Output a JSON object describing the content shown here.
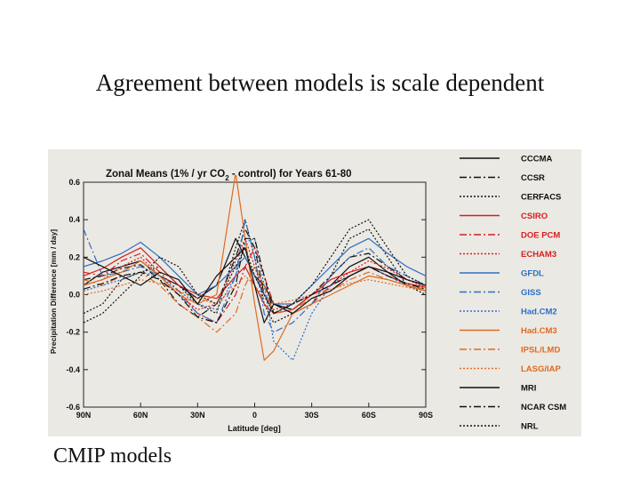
{
  "slide": {
    "title": "Agreement between models is scale dependent",
    "caption": "CMIP models"
  },
  "chart_data": {
    "type": "line",
    "title": "Zonal Means (1% / yr CO2 - control) for Years 61-80",
    "title_prefix": "Zonal Means (1% / yr CO",
    "title_sub": "2",
    "title_suffix": " - control) for Years 61-80",
    "xlabel": "Latitude  [deg]",
    "ylabel": "Precipitation Difference  [mm / day]",
    "xlim": [
      -90,
      90
    ],
    "ylim": [
      -0.6,
      0.6
    ],
    "xticks": [
      {
        "v": -90,
        "label": "90N"
      },
      {
        "v": -60,
        "label": "60N"
      },
      {
        "v": -30,
        "label": "30N"
      },
      {
        "v": 0,
        "label": "0"
      },
      {
        "v": 30,
        "label": "30S"
      },
      {
        "v": 60,
        "label": "60S"
      },
      {
        "v": 90,
        "label": "90S"
      }
    ],
    "yticks": [
      {
        "v": 0.6,
        "label": "0.6"
      },
      {
        "v": 0.4,
        "label": "0.4"
      },
      {
        "v": 0.2,
        "label": "0.2"
      },
      {
        "v": 0.0,
        "label": "0.0"
      },
      {
        "v": -0.2,
        "label": "-0.2"
      },
      {
        "v": -0.4,
        "label": "-0.4"
      },
      {
        "v": -0.6,
        "label": "-0.6"
      }
    ],
    "x": [
      -90,
      -80,
      -70,
      -60,
      -50,
      -40,
      -30,
      -20,
      -10,
      -5,
      0,
      5,
      10,
      20,
      30,
      40,
      50,
      60,
      70,
      80,
      90
    ],
    "series": [
      {
        "name": "CCCMA",
        "color": "#111111",
        "dash": "solid",
        "values": [
          0.05,
          0.12,
          0.15,
          0.18,
          0.1,
          0.05,
          -0.02,
          0.05,
          0.3,
          0.2,
          0.1,
          0.05,
          -0.05,
          -0.08,
          0.0,
          0.05,
          0.15,
          0.2,
          0.12,
          0.05,
          0.02
        ]
      },
      {
        "name": "CCSR",
        "color": "#111111",
        "dash": "8,3,2,3",
        "values": [
          0.08,
          0.1,
          0.14,
          0.16,
          0.08,
          -0.05,
          -0.12,
          -0.05,
          0.2,
          0.35,
          0.25,
          0.0,
          -0.1,
          -0.05,
          0.0,
          0.1,
          0.2,
          0.22,
          0.15,
          0.08,
          0.05
        ]
      },
      {
        "name": "CERFACS",
        "color": "#111111",
        "dash": "2,2",
        "values": [
          -0.1,
          -0.05,
          0.08,
          0.12,
          0.15,
          0.05,
          -0.05,
          -0.1,
          0.25,
          0.4,
          0.2,
          -0.05,
          -0.15,
          -0.1,
          -0.05,
          0.1,
          0.3,
          0.35,
          0.2,
          0.05,
          0.0
        ]
      },
      {
        "name": "CSIRO",
        "color": "#d81e1e",
        "dash": "solid",
        "values": [
          0.1,
          0.14,
          0.2,
          0.25,
          0.15,
          0.05,
          0.0,
          -0.02,
          0.1,
          0.15,
          0.05,
          -0.05,
          -0.1,
          -0.08,
          0.0,
          0.08,
          0.12,
          0.15,
          0.1,
          0.06,
          0.04
        ]
      },
      {
        "name": "DOE PCM",
        "color": "#d81e1e",
        "dash": "8,3,2,3",
        "values": [
          0.12,
          0.1,
          0.18,
          0.22,
          0.12,
          0.02,
          -0.1,
          -0.15,
          0.0,
          0.15,
          0.25,
          0.1,
          -0.05,
          -0.1,
          -0.05,
          0.05,
          0.1,
          0.15,
          0.12,
          0.08,
          0.05
        ]
      },
      {
        "name": "ECHAM3",
        "color": "#d81e1e",
        "dash": "2,2",
        "values": [
          0.05,
          0.08,
          0.15,
          0.2,
          0.1,
          0.0,
          -0.08,
          -0.05,
          0.18,
          0.3,
          0.15,
          0.0,
          -0.08,
          -0.05,
          0.0,
          0.05,
          0.12,
          0.18,
          0.14,
          0.08,
          0.04
        ]
      },
      {
        "name": "GFDL",
        "color": "#2e6fc4",
        "dash": "solid",
        "values": [
          0.15,
          0.18,
          0.22,
          0.28,
          0.2,
          0.1,
          0.0,
          0.05,
          0.15,
          0.2,
          0.1,
          0.0,
          -0.05,
          -0.05,
          0.05,
          0.15,
          0.25,
          0.3,
          0.22,
          0.15,
          0.1
        ]
      },
      {
        "name": "GISS",
        "color": "#2e6fc4",
        "dash": "8,3,2,3",
        "values": [
          0.35,
          0.1,
          0.12,
          0.15,
          0.1,
          0.0,
          -0.1,
          -0.15,
          0.1,
          0.4,
          0.2,
          -0.1,
          -0.2,
          -0.15,
          -0.05,
          0.1,
          0.2,
          0.25,
          0.15,
          0.1,
          0.05
        ]
      },
      {
        "name": "Had.CM2",
        "color": "#2e6fc4",
        "dash": "2,2",
        "values": [
          0.02,
          0.05,
          0.08,
          0.12,
          0.1,
          0.02,
          -0.05,
          -0.08,
          0.1,
          0.28,
          0.3,
          0.05,
          -0.25,
          -0.35,
          -0.1,
          0.05,
          0.1,
          0.15,
          0.1,
          0.05,
          0.02
        ]
      },
      {
        "name": "Had.CM3",
        "color": "#e06a1e",
        "dash": "solid",
        "values": [
          0.05,
          0.08,
          0.12,
          0.18,
          0.1,
          0.0,
          -0.05,
          0.0,
          0.65,
          0.3,
          -0.05,
          -0.35,
          -0.3,
          -0.1,
          -0.05,
          0.0,
          0.05,
          0.1,
          0.08,
          0.05,
          0.02
        ]
      },
      {
        "name": "IPSL/LMD",
        "color": "#e06a1e",
        "dash": "8,3,2,3",
        "values": [
          0.08,
          0.05,
          0.1,
          0.12,
          0.05,
          -0.05,
          -0.12,
          -0.2,
          -0.1,
          0.05,
          0.15,
          0.05,
          -0.1,
          -0.08,
          -0.02,
          0.02,
          0.08,
          0.12,
          0.08,
          0.05,
          0.03
        ]
      },
      {
        "name": "LASG/IAP",
        "color": "#e06a1e",
        "dash": "2,2",
        "values": [
          0.0,
          0.02,
          0.05,
          0.08,
          0.06,
          0.02,
          -0.02,
          -0.05,
          0.05,
          0.1,
          0.05,
          -0.02,
          -0.05,
          -0.03,
          0.0,
          0.03,
          0.06,
          0.08,
          0.06,
          0.04,
          0.02
        ]
      },
      {
        "name": "MRI",
        "color": "#111111",
        "dash": "solid",
        "values": [
          0.2,
          0.15,
          0.1,
          0.05,
          0.12,
          0.08,
          -0.05,
          0.1,
          0.2,
          0.25,
          0.05,
          -0.15,
          -0.05,
          -0.1,
          -0.02,
          0.02,
          0.1,
          0.15,
          0.12,
          0.08,
          0.05
        ]
      },
      {
        "name": "NCAR CSM",
        "color": "#111111",
        "dash": "8,3,2,3",
        "values": [
          0.03,
          0.06,
          0.1,
          0.12,
          0.08,
          0.0,
          -0.12,
          -0.15,
          0.05,
          0.3,
          0.3,
          0.1,
          -0.1,
          -0.05,
          0.0,
          0.05,
          0.1,
          0.15,
          0.1,
          0.06,
          0.03
        ]
      },
      {
        "name": "NRL",
        "color": "#111111",
        "dash": "2,2",
        "values": [
          -0.15,
          -0.1,
          0.0,
          0.1,
          0.2,
          0.15,
          0.0,
          -0.05,
          0.15,
          0.25,
          0.1,
          0.0,
          -0.1,
          -0.05,
          0.05,
          0.2,
          0.35,
          0.4,
          0.25,
          0.1,
          0.05
        ]
      }
    ]
  }
}
